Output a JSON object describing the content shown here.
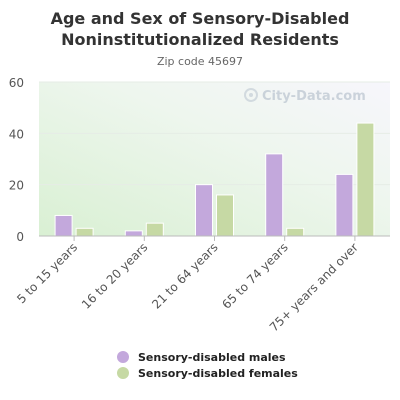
{
  "chart_data": {
    "type": "bar",
    "title": "Age and Sex of Sensory-Disabled Noninstitutionalized Residents",
    "subtitle": "Zip code 45697",
    "categories": [
      "5 to 15 years",
      "16 to 20 years",
      "21 to 64 years",
      "65 to 74 years",
      "75+ years and over"
    ],
    "series": [
      {
        "name": "Sensory-disabled males",
        "values": [
          8,
          2,
          20,
          32,
          24
        ],
        "color": "#c3a8dc"
      },
      {
        "name": "Sensory-disabled females",
        "values": [
          3,
          5,
          16,
          3,
          44
        ],
        "color": "#c6d9a4"
      }
    ],
    "ylim": [
      0,
      60
    ],
    "yticks": [
      0,
      20,
      40,
      60
    ],
    "xlabel": "",
    "ylabel": "",
    "grid": true,
    "legend_position": "bottom"
  },
  "watermark": "City-Data.com"
}
